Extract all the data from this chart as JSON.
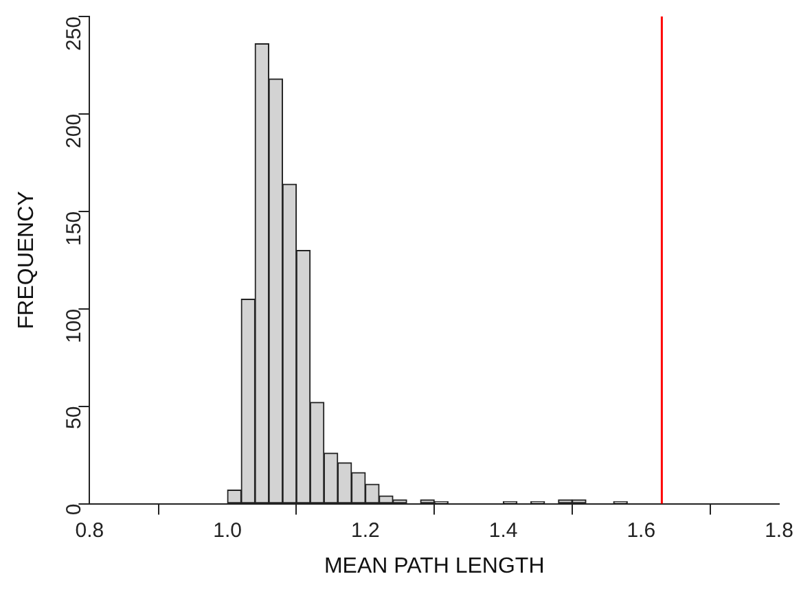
{
  "chart_data": {
    "type": "histogram",
    "xlabel": "MEAN PATH LENGTH",
    "ylabel": "FREQUENCY",
    "bins": [
      1.0,
      1.02,
      1.04,
      1.06,
      1.08,
      1.1,
      1.12,
      1.14,
      1.16,
      1.18,
      1.2,
      1.22,
      1.24,
      1.26,
      1.28,
      1.3,
      1.32,
      1.34,
      1.36,
      1.38,
      1.4,
      1.42,
      1.44,
      1.46,
      1.48,
      1.5,
      1.52,
      1.54,
      1.56,
      1.58
    ],
    "values": [
      7,
      105,
      236,
      218,
      164,
      130,
      52,
      26,
      21,
      16,
      10,
      4,
      2,
      0,
      2,
      1,
      0,
      0,
      0,
      0,
      1,
      0,
      1,
      0,
      2,
      2,
      0,
      0,
      1
    ],
    "color": "#d3d3d3",
    "xlim": [
      0.8,
      1.8
    ],
    "xticks": [
      {
        "value": 0.8,
        "label": "0.8"
      },
      {
        "value": 1.0,
        "label": "1.0"
      },
      {
        "value": 1.2,
        "label": "1.2"
      },
      {
        "value": 1.4,
        "label": "1.4"
      },
      {
        "value": 1.6,
        "label": "1.6"
      },
      {
        "value": 1.8,
        "label": "1.8"
      }
    ],
    "ylim": [
      0,
      250
    ],
    "yticks": [
      0,
      50,
      100,
      150,
      200,
      250
    ],
    "ref_lines": [
      {
        "axis": "x",
        "value": 1.63,
        "color": "#ff0000"
      }
    ]
  }
}
